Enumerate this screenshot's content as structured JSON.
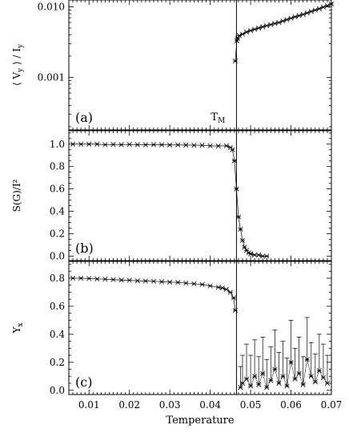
{
  "chart_data": [
    {
      "id": "a",
      "type": "scatter",
      "panel_label": "(a)",
      "ylabel": "⟨ V_y ⟩ / I_y",
      "yscale": "log",
      "ylim": [
        0.00018,
        0.0125
      ],
      "xlim": [
        0.005,
        0.07
      ],
      "yticks": [
        0.001,
        0.01
      ],
      "ytick_labels": [
        "0.001",
        "0.010"
      ],
      "annotation": "T_M",
      "vline_x": 0.0465,
      "series": [
        {
          "x": [
            0.0462,
            0.0466,
            0.0468,
            0.0472,
            0.048,
            0.049,
            0.05,
            0.051,
            0.052,
            0.053,
            0.054,
            0.055,
            0.056,
            0.057,
            0.058,
            0.059,
            0.06,
            0.061,
            0.062,
            0.063,
            0.064,
            0.065,
            0.066,
            0.067,
            0.068,
            0.069,
            0.07
          ],
          "y": [
            0.0017,
            0.0033,
            0.0036,
            0.0039,
            0.0041,
            0.0044,
            0.0046,
            0.0048,
            0.005,
            0.0052,
            0.0054,
            0.0056,
            0.0058,
            0.006,
            0.0063,
            0.0066,
            0.0069,
            0.0072,
            0.0075,
            0.0078,
            0.0082,
            0.0086,
            0.009,
            0.0094,
            0.0099,
            0.0104,
            0.011
          ]
        }
      ]
    },
    {
      "id": "b",
      "type": "scatter",
      "panel_label": "(b)",
      "ylabel": "S(G)/I²",
      "ylim": [
        -0.04,
        1.12
      ],
      "xlim": [
        0.005,
        0.07
      ],
      "yticks": [
        0.0,
        0.2,
        0.4,
        0.6,
        0.8,
        1.0
      ],
      "ytick_labels": [
        "0.0",
        "0.2",
        "0.4",
        "0.6",
        "0.8",
        "1.0"
      ],
      "vline_x": 0.0465,
      "series": [
        {
          "x": [
            0.006,
            0.008,
            0.01,
            0.012,
            0.014,
            0.016,
            0.018,
            0.02,
            0.022,
            0.024,
            0.026,
            0.028,
            0.03,
            0.032,
            0.034,
            0.036,
            0.038,
            0.04,
            0.042,
            0.044,
            0.045,
            0.0455,
            0.046,
            0.0465,
            0.047,
            0.0475,
            0.048,
            0.0485,
            0.049,
            0.0495,
            0.05,
            0.051,
            0.052,
            0.053,
            0.054
          ],
          "y": [
            1.0,
            1.0,
            1.0,
            1.0,
            0.995,
            0.997,
            0.995,
            0.997,
            0.995,
            0.994,
            0.995,
            0.994,
            0.993,
            0.993,
            0.992,
            0.99,
            0.99,
            0.985,
            0.984,
            0.985,
            0.97,
            0.95,
            0.85,
            0.6,
            0.35,
            0.24,
            0.14,
            0.08,
            0.05,
            0.03,
            0.02,
            0.01,
            0.01,
            0.0,
            0.0
          ]
        }
      ]
    },
    {
      "id": "c",
      "type": "scatter",
      "panel_label": "(c)",
      "ylabel": "Υ_x",
      "ylim": [
        -0.03,
        0.92
      ],
      "xlim": [
        0.005,
        0.07
      ],
      "yticks": [
        0.0,
        0.2,
        0.4,
        0.6,
        0.8
      ],
      "ytick_labels": [
        "0.0",
        "0.2",
        "0.4",
        "0.6",
        "0.8"
      ],
      "xticks": [
        0.01,
        0.02,
        0.03,
        0.04,
        0.05,
        0.06,
        0.07
      ],
      "xtick_labels": [
        "0.01",
        "0.02",
        "0.03",
        "0.04",
        "0.05",
        "0.06",
        "0.07"
      ],
      "xlabel": "Temperature",
      "vline_x": 0.0465,
      "series": [
        {
          "x": [
            0.006,
            0.008,
            0.01,
            0.012,
            0.014,
            0.016,
            0.018,
            0.02,
            0.022,
            0.024,
            0.026,
            0.028,
            0.03,
            0.032,
            0.034,
            0.036,
            0.038,
            0.04,
            0.042,
            0.043,
            0.044,
            0.045,
            0.0458,
            0.0462
          ],
          "y": [
            0.8,
            0.8,
            0.798,
            0.795,
            0.793,
            0.79,
            0.787,
            0.785,
            0.782,
            0.78,
            0.778,
            0.775,
            0.772,
            0.77,
            0.765,
            0.76,
            0.755,
            0.745,
            0.735,
            0.73,
            0.72,
            0.7,
            0.66,
            0.57
          ]
        },
        {
          "x": [
            0.0475,
            0.048,
            0.049,
            0.05,
            0.051,
            0.052,
            0.053,
            0.054,
            0.055,
            0.056,
            0.057,
            0.058,
            0.059,
            0.06,
            0.061,
            0.062,
            0.063,
            0.064,
            0.065,
            0.066,
            0.067,
            0.068,
            0.069
          ],
          "y": [
            0.02,
            0.05,
            0.08,
            0.03,
            0.1,
            0.04,
            0.12,
            0.02,
            0.07,
            0.15,
            0.05,
            0.1,
            0.03,
            0.2,
            0.08,
            0.12,
            0.04,
            0.22,
            0.1,
            0.06,
            0.14,
            0.09,
            0.05
          ],
          "err": [
            0.15,
            0.2,
            0.25,
            0.22,
            0.26,
            0.2,
            0.26,
            0.2,
            0.24,
            0.28,
            0.22,
            0.25,
            0.2,
            0.3,
            0.22,
            0.26,
            0.2,
            0.3,
            0.24,
            0.2,
            0.26,
            0.24,
            0.2
          ]
        }
      ]
    }
  ]
}
